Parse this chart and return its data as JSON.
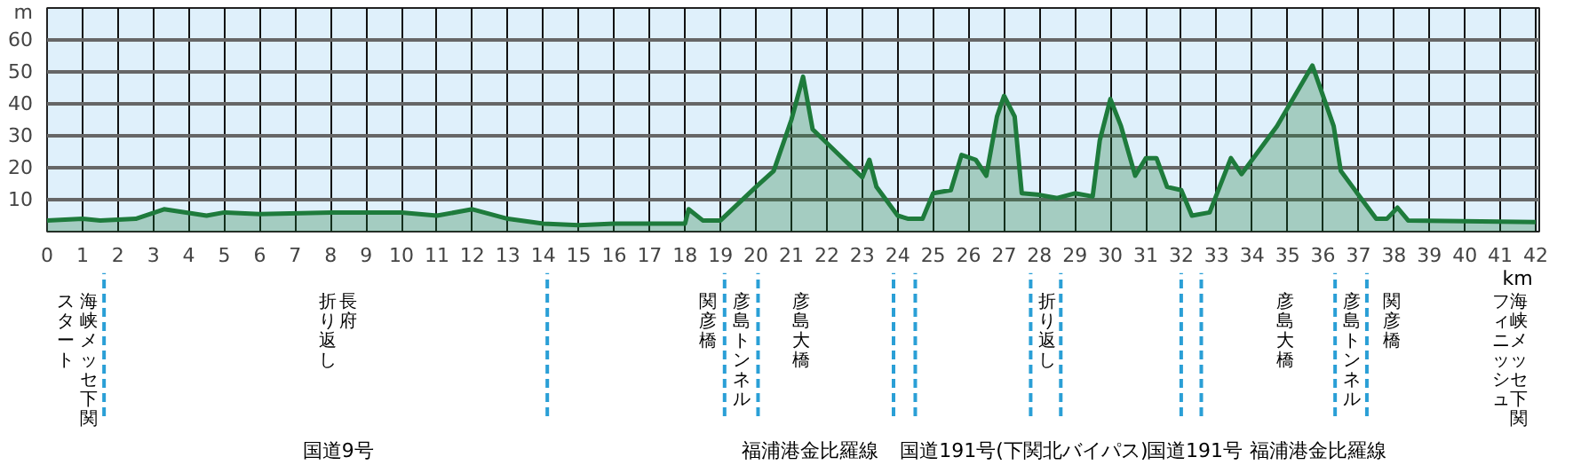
{
  "chart_data": {
    "type": "area",
    "xlabel": "km",
    "color": "#1e7b3c",
    "x": [
      0,
      1,
      1.5,
      2.5,
      3.3,
      4.5,
      5,
      6,
      8,
      10,
      11,
      12,
      13,
      14,
      15,
      16,
      18,
      18.1,
      18.5,
      19,
      20,
      20.5,
      21,
      21.33,
      21.6,
      23,
      23.2,
      23.4,
      24,
      24.3,
      24.7,
      25,
      25.5,
      25.8,
      26.2,
      26.5,
      26.8,
      27,
      27.3,
      27.5,
      28,
      28.5,
      29,
      29.5,
      29.7,
      30,
      30.3,
      30.7,
      31,
      31.3,
      31.6,
      32,
      32.3,
      32.8,
      33.4,
      33.7,
      34.7,
      35.7,
      36.3,
      36.5,
      37.5,
      37.8,
      38.1,
      38.4,
      42
    ],
    "values": [
      3.5,
      4,
      3.5,
      4,
      7,
      5,
      6,
      5.5,
      6,
      6,
      5,
      7,
      4,
      2.5,
      2,
      2.5,
      2.5,
      7,
      3.5,
      3.5,
      14,
      19,
      35,
      48.5,
      32,
      17,
      22.5,
      14,
      5,
      4,
      4,
      12,
      13,
      24,
      22.5,
      17.5,
      36,
      42.5,
      36,
      12,
      11.5,
      10.5,
      12,
      11,
      28.5,
      41.5,
      33,
      17.5,
      23,
      23,
      14,
      13,
      5,
      6,
      23,
      18,
      33,
      52,
      33,
      19,
      4,
      4,
      7.5,
      3.5,
      3
    ],
    "xlim": [
      0,
      42.1
    ],
    "ylim": [
      0,
      70
    ],
    "xticks": [
      0,
      1,
      2,
      3,
      4,
      5,
      6,
      7,
      8,
      9,
      10,
      11,
      12,
      13,
      14,
      15,
      16,
      17,
      18,
      19,
      20,
      21,
      22,
      23,
      24,
      25,
      26,
      27,
      28,
      29,
      30,
      31,
      32,
      33,
      34,
      35,
      36,
      37,
      38,
      39,
      40,
      41,
      42
    ],
    "yticks": [
      10,
      20,
      30,
      40,
      50,
      60,
      {
        "value": 70,
        "label": "m"
      }
    ],
    "grid": true,
    "annotations": [
      "スタート",
      "海峡メッセ下関",
      "折り返し",
      "長府",
      "関彦橋",
      "彦島トンネル",
      "彦島大橋",
      "折り返し",
      "彦島大橋",
      "彦島トンネル",
      "関彦橋",
      "フィニッシュ",
      "海峡メッセ下関",
      "国道9号",
      "福浦港金比羅線",
      "国道191号(下関北バイパス)",
      "国道191号",
      "福浦港金比羅線"
    ]
  }
}
